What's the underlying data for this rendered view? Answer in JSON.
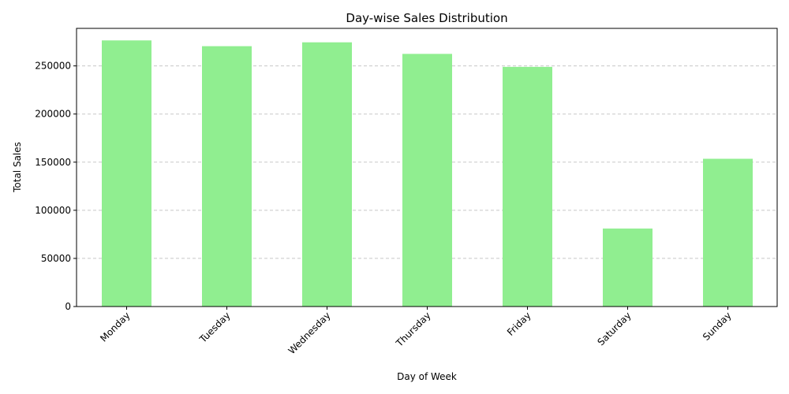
{
  "chart_data": {
    "type": "bar",
    "title": "Day-wise Sales Distribution",
    "xlabel": "Day of Week",
    "ylabel": "Total Sales",
    "categories": [
      "Monday",
      "Tuesday",
      "Wednesday",
      "Thursday",
      "Friday",
      "Saturday",
      "Sunday"
    ],
    "values": [
      276500,
      270500,
      274500,
      262500,
      249000,
      81000,
      153500
    ],
    "ylim": [
      0,
      289000
    ],
    "yticks": [
      0,
      50000,
      100000,
      150000,
      200000,
      250000
    ],
    "ytick_labels": [
      "0",
      "50000",
      "100000",
      "150000",
      "200000",
      "250000"
    ],
    "grid": "y-dashed",
    "legend": "none",
    "bar_color": "#90EE90"
  }
}
